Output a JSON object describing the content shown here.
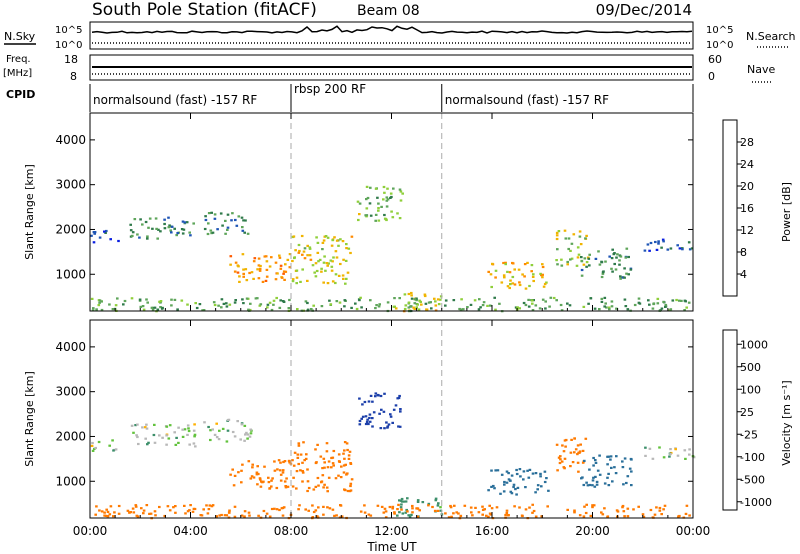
{
  "header": {
    "station": "South Pole Station (fitACF)",
    "beam": "Beam 08",
    "date": "09/Dec/2014"
  },
  "summary_panels": {
    "nsky_label": "N.Sky",
    "nsearch_label": "N.Search",
    "noise_ticks": [
      "10^5",
      "10^0"
    ],
    "freq_label": "Freq.",
    "freq_unit": "[MHz]",
    "freq_ticks": [
      "18",
      "8"
    ],
    "nave_label": "Nave",
    "nave_ticks": [
      "60",
      "0"
    ],
    "cpid_label": "CPID",
    "cpid_segments": [
      {
        "label": "normalsound (fast) -157 RF",
        "start_hour": 0,
        "end_hour": 8
      },
      {
        "label": "rbsp 200 RF",
        "start_hour": 8,
        "end_hour": 14
      },
      {
        "label": "normalsound (fast) -157 RF",
        "start_hour": 14,
        "end_hour": 24
      }
    ]
  },
  "axes": {
    "xlabel": "Time UT",
    "x_ticks": [
      "00:00",
      "04:00",
      "08:00",
      "12:00",
      "16:00",
      "20:00",
      "00:00"
    ],
    "ylabel": "Slant Range [km]",
    "y_ticks": [
      "1000",
      "2000",
      "3000",
      "4000"
    ]
  },
  "colorbars": {
    "power": {
      "label": "Power [dB]",
      "ticks": [
        "4",
        "8",
        "12",
        "16",
        "20",
        "24",
        "28"
      ],
      "colors": [
        "#0a1ee0",
        "#1f55b5",
        "#2f7a4a",
        "#5ea55a",
        "#8fcf3a",
        "#f0b400",
        "#ff8a00",
        "#ff5a00",
        "#ee1a00"
      ]
    },
    "velocity": {
      "label": "Velocity [m s⁻¹]",
      "ticks": [
        "1000",
        "500",
        "100",
        "25",
        "-25",
        "-100",
        "-500",
        "-1000"
      ],
      "colors": [
        "#1c3faa",
        "#2a6f9a",
        "#3c8f6a",
        "#62c23c",
        "#b8b8b8",
        "#ffb000",
        "#ff7a00",
        "#ee1a00"
      ]
    }
  },
  "chart_data": [
    {
      "type": "heatmap",
      "panel": "power",
      "x_unit": "hours UT",
      "xlim": [
        0,
        24
      ],
      "ylim": [
        180,
        4600
      ],
      "value_unit": "dB",
      "regions": [
        {
          "t0": 0.0,
          "t1": 1.1,
          "r0": 1700,
          "r1": 2000,
          "val": 5
        },
        {
          "t0": 1.5,
          "t1": 4.2,
          "r0": 1800,
          "r1": 2300,
          "val": 9
        },
        {
          "t0": 4.5,
          "t1": 6.4,
          "r0": 1900,
          "r1": 2400,
          "val": 10
        },
        {
          "t0": 5.5,
          "t1": 8.0,
          "r0": 850,
          "r1": 1500,
          "val": 22
        },
        {
          "t0": 8.0,
          "t1": 10.4,
          "r0": 800,
          "r1": 1900,
          "val": 18
        },
        {
          "t0": 10.6,
          "t1": 12.4,
          "r0": 2200,
          "r1": 3000,
          "val": 14
        },
        {
          "t0": 12.0,
          "t1": 14.0,
          "r0": 200,
          "r1": 650,
          "val": 18
        },
        {
          "t0": 15.8,
          "t1": 18.2,
          "r0": 700,
          "r1": 1300,
          "val": 20
        },
        {
          "t0": 18.5,
          "t1": 19.8,
          "r0": 1200,
          "r1": 2000,
          "val": 16
        },
        {
          "t0": 19.5,
          "t1": 21.5,
          "r0": 900,
          "r1": 1600,
          "val": 10
        },
        {
          "t0": 22.0,
          "t1": 24.0,
          "r0": 1500,
          "r1": 1800,
          "val": 6
        },
        {
          "t0": 0.0,
          "t1": 24.0,
          "r0": 200,
          "r1": 500,
          "val": 12
        }
      ]
    },
    {
      "type": "heatmap",
      "panel": "velocity",
      "x_unit": "hours UT",
      "xlim": [
        0,
        24
      ],
      "ylim": [
        180,
        4600
      ],
      "value_unit": "m s-1",
      "regions": [
        {
          "t0": 0.0,
          "t1": 1.1,
          "r0": 1700,
          "r1": 2000,
          "val": 0
        },
        {
          "t0": 1.5,
          "t1": 4.2,
          "r0": 1800,
          "r1": 2300,
          "val": 0
        },
        {
          "t0": 4.5,
          "t1": 6.4,
          "r0": 1900,
          "r1": 2400,
          "val": 0
        },
        {
          "t0": 5.5,
          "t1": 8.0,
          "r0": 850,
          "r1": 1500,
          "val": -300
        },
        {
          "t0": 8.0,
          "t1": 10.4,
          "r0": 800,
          "r1": 1900,
          "val": -200
        },
        {
          "t0": 10.6,
          "t1": 12.4,
          "r0": 2200,
          "r1": 3000,
          "val": 600
        },
        {
          "t0": 12.0,
          "t1": 14.0,
          "r0": 200,
          "r1": 650,
          "val": 50
        },
        {
          "t0": 15.8,
          "t1": 18.2,
          "r0": 700,
          "r1": 1300,
          "val": 300
        },
        {
          "t0": 18.5,
          "t1": 19.8,
          "r0": 1200,
          "r1": 2000,
          "val": -300
        },
        {
          "t0": 19.5,
          "t1": 21.5,
          "r0": 900,
          "r1": 1600,
          "val": 200
        },
        {
          "t0": 22.0,
          "t1": 24.0,
          "r0": 1500,
          "r1": 1800,
          "val": 0
        },
        {
          "t0": 0.0,
          "t1": 24.0,
          "r0": 200,
          "r1": 500,
          "val": -150
        }
      ]
    }
  ]
}
